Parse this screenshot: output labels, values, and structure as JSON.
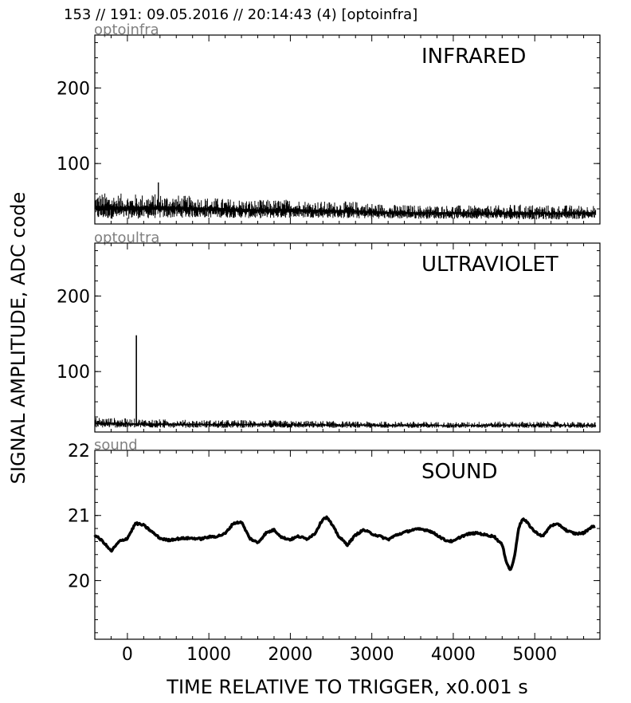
{
  "header": {
    "text": "153 // 191:   09.05.2016 // 20:14:43 (4)  [optoinfra]"
  },
  "xlabel": "TIME RELATIVE TO TRIGGER,   x0.001 s",
  "ylabel": "SIGNAL AMPLITUDE,  ADC code",
  "chart_data": [
    {
      "type": "line",
      "channel": "optoinfra",
      "title": "INFRARED",
      "xlim": [
        -400,
        5800
      ],
      "ylim": [
        20,
        270
      ],
      "yticks": [
        100,
        200
      ],
      "xticks": [
        0,
        1000,
        2000,
        3000,
        4000,
        5000
      ],
      "series": [
        {
          "x": [
            -400,
            0,
            400,
            800,
            1200,
            1600,
            2000,
            2400,
            2800,
            3200,
            3600,
            4000,
            4400,
            4800,
            5200,
            5750
          ],
          "y_low": [
            25,
            25,
            26,
            27,
            27,
            26,
            27,
            27,
            26,
            26,
            26,
            26,
            26,
            25,
            25,
            26
          ],
          "y_high": [
            62,
            60,
            60,
            57,
            54,
            52,
            53,
            50,
            50,
            46,
            45,
            45,
            44,
            46,
            45,
            45
          ]
        }
      ],
      "annotations": [
        {
          "x": 380,
          "y": 75,
          "text": ""
        }
      ]
    },
    {
      "type": "line",
      "channel": "optoultra",
      "title": "ULTRAVIOLET",
      "xlim": [
        -400,
        5800
      ],
      "ylim": [
        20,
        270
      ],
      "yticks": [
        100,
        200
      ],
      "xticks": [
        0,
        1000,
        2000,
        3000,
        4000,
        5000
      ],
      "series": [
        {
          "x": [
            -400,
            0,
            400,
            800,
            1200,
            1600,
            2000,
            2400,
            2800,
            3200,
            3600,
            4000,
            4400,
            4800,
            5200,
            5750
          ],
          "y_low": [
            25,
            25,
            25,
            25,
            25,
            25,
            25,
            25,
            25,
            25,
            25,
            25,
            25,
            25,
            25,
            25
          ],
          "y_high": [
            40,
            38,
            37,
            36,
            36,
            36,
            35,
            35,
            34,
            34,
            34,
            33,
            34,
            34,
            34,
            33
          ]
        }
      ],
      "spike": {
        "x": 110,
        "y": 148
      }
    },
    {
      "type": "line",
      "channel": "sound",
      "title": "SOUND",
      "xlim": [
        -400,
        5800
      ],
      "ylim": [
        19.1,
        22.0
      ],
      "yticks": [
        20,
        21,
        22
      ],
      "xticks": [
        0,
        1000,
        2000,
        3000,
        4000,
        5000
      ],
      "series": [
        {
          "x": [
            -400,
            -300,
            -200,
            -100,
            0,
            100,
            200,
            300,
            400,
            500,
            600,
            700,
            800,
            900,
            1000,
            1100,
            1200,
            1300,
            1400,
            1500,
            1600,
            1700,
            1800,
            1900,
            2000,
            2100,
            2200,
            2300,
            2400,
            2450,
            2500,
            2600,
            2700,
            2800,
            2900,
            3000,
            3100,
            3200,
            3300,
            3400,
            3500,
            3600,
            3700,
            3800,
            3900,
            4000,
            4100,
            4200,
            4300,
            4400,
            4500,
            4600,
            4650,
            4700,
            4750,
            4800,
            4850,
            4900,
            5000,
            5100,
            5200,
            5300,
            5400,
            5500,
            5600,
            5700,
            5750
          ],
          "y": [
            20.7,
            20.6,
            20.45,
            20.6,
            20.65,
            20.88,
            20.85,
            20.75,
            20.65,
            20.62,
            20.64,
            20.65,
            20.65,
            20.64,
            20.67,
            20.68,
            20.72,
            20.88,
            20.9,
            20.65,
            20.58,
            20.73,
            20.78,
            20.66,
            20.63,
            20.68,
            20.64,
            20.72,
            20.95,
            20.97,
            20.88,
            20.67,
            20.55,
            20.7,
            20.78,
            20.72,
            20.68,
            20.63,
            20.7,
            20.74,
            20.78,
            20.79,
            20.77,
            20.7,
            20.62,
            20.6,
            20.68,
            20.72,
            20.73,
            20.7,
            20.68,
            20.55,
            20.3,
            20.15,
            20.35,
            20.8,
            20.95,
            20.9,
            20.75,
            20.68,
            20.85,
            20.86,
            20.76,
            20.72,
            20.73,
            20.83,
            20.82
          ]
        }
      ]
    }
  ]
}
